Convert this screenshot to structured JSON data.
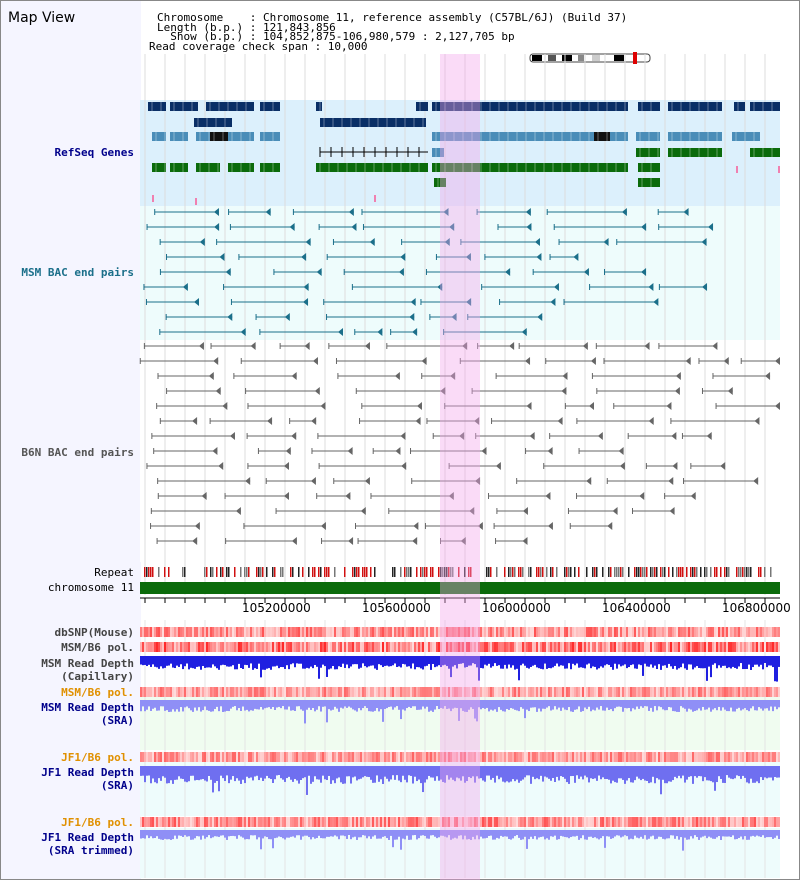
{
  "title": "Map View",
  "header": {
    "chr_label": "Chromosome    : Chromosome 11, reference assembly (C57BL/6J) (Build 37)",
    "length_label": "Length (b.p.) : 121,843,856",
    "show_label": "  Show (b.p.) : 104,852,875-106,980,579 : 2,127,705 bp",
    "coverage_label": "Read coverage check span : 10,000"
  },
  "tracks": {
    "refseq": "RefSeq Genes",
    "msm_bac": "MSM BAC end pairs",
    "b6n_bac": "B6N BAC end pairs",
    "repeat": "Repeat",
    "chromosome": "chromosome 11",
    "dbsnp": "dbSNP(Mouse)",
    "msm_b6_pol_1": "MSM/B6 pol.",
    "msm_read_depth_cap_1": "MSM Read Depth",
    "msm_read_depth_cap_2": "(Capillary)",
    "msm_b6_pol_2": "MSM/B6 pol.",
    "msm_read_depth_sra_1": "MSM Read Depth",
    "msm_read_depth_sra_2": "(SRA)",
    "jf1_b6_pol_1": "JF1/B6 pol.",
    "jf1_read_depth_sra_1": "JF1 Read Depth",
    "jf1_read_depth_sra_2": "(SRA)",
    "jf1_b6_pol_2": "JF1/B6 pol.",
    "jf1_read_depth_trim_1": "JF1 Read Depth",
    "jf1_read_depth_trim_2": "(SRA trimmed)"
  },
  "axis_ticks": [
    "105200000",
    "105600000",
    "106000000",
    "106400000",
    "106800000"
  ],
  "colors": {
    "refseq_bg": "#dcf0fc",
    "bac_bg": "#eefcfc",
    "highlight": "#f8d4f4",
    "gene_dark": "#0a2f66",
    "gene_mid": "#4a8db8",
    "gene_green": "#0b6b0b",
    "msm_line": "#1b6f8a",
    "b6n_line": "#666666",
    "chromosome_bar": "#0b6b0b",
    "depth_blue": "#1f1fe0",
    "depth_light": "#6f6ff0",
    "label_blue": "#00008b",
    "label_teal": "#1b6f8a",
    "label_orange": "#e09000"
  }
}
